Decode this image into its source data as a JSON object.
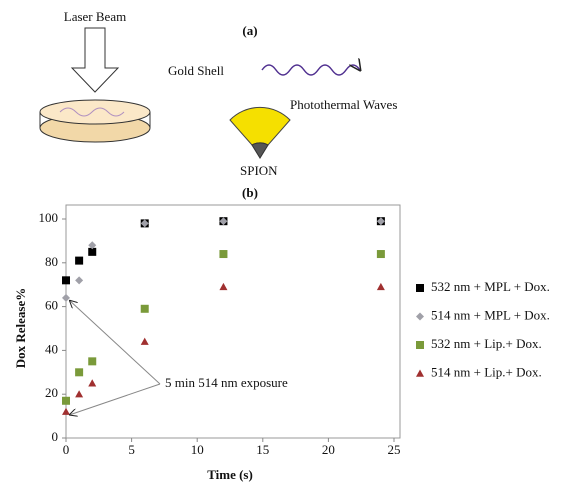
{
  "diagram": {
    "laser_label": "Laser Beam",
    "panel_a": "(a)",
    "shell_label": "Gold Shell",
    "waves_label": "Photothermal Waves",
    "core_label": "SPION",
    "panel_b": "(b)"
  },
  "chart_data": {
    "type": "scatter",
    "xlabel": "Time (s)",
    "ylabel": "Dox Release%",
    "annotation": "5 min 514 nm exposure",
    "xlim": [
      0,
      25
    ],
    "xticks": [
      0,
      5,
      10,
      15,
      20,
      25
    ],
    "ylim": [
      0,
      100
    ],
    "yticks": [
      0,
      20,
      40,
      60,
      80,
      100
    ],
    "series": [
      {
        "name": "532 nm + MPL + Dox.",
        "color": "#000000",
        "marker": "square",
        "x": [
          0,
          1,
          2,
          6,
          12,
          24
        ],
        "values": [
          72,
          81,
          85,
          98,
          99,
          99
        ]
      },
      {
        "name": "514 nm + MPL + Dox.",
        "color": "#a0a0a8",
        "marker": "diamond",
        "x": [
          0,
          1,
          2,
          6,
          12,
          24
        ],
        "values": [
          64,
          72,
          88,
          98,
          99,
          99
        ]
      },
      {
        "name": "532 nm + Lip.+ Dox.",
        "color": "#7a9a3a",
        "marker": "square",
        "x": [
          0,
          1,
          2,
          6,
          12,
          24
        ],
        "values": [
          17,
          30,
          35,
          59,
          84,
          84
        ]
      },
      {
        "name": "514 nm + Lip.+ Dox.",
        "color": "#a03030",
        "marker": "triangle",
        "x": [
          0,
          1,
          2,
          6,
          12,
          24
        ],
        "values": [
          12,
          20,
          25,
          44,
          69,
          69
        ]
      }
    ]
  }
}
